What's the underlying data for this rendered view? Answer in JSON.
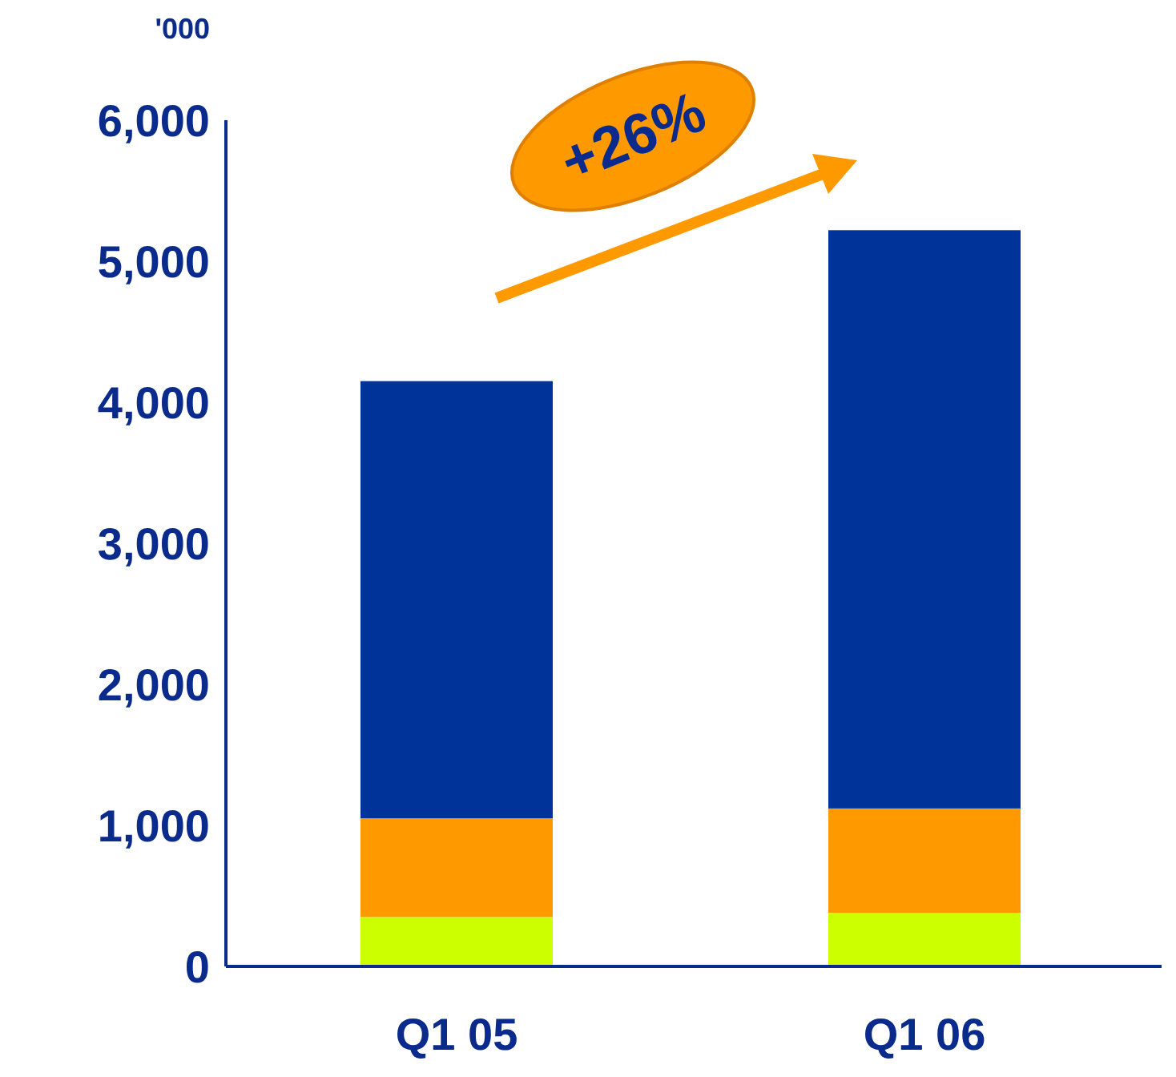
{
  "chart_data": {
    "type": "bar",
    "stacked": true,
    "categories": [
      "Q1 05",
      "Q1 06"
    ],
    "series": [
      {
        "color": "#ccff00",
        "values": [
          350,
          380
        ]
      },
      {
        "color": "#ff9900",
        "values": [
          700,
          740
        ]
      },
      {
        "color": "#003399",
        "values": [
          3100,
          4100
        ]
      }
    ],
    "ylabel": "'000",
    "ylim": [
      0,
      6000
    ],
    "yticks": [
      {
        "value": 0,
        "label": "0"
      },
      {
        "value": 1000,
        "label": "1,000"
      },
      {
        "value": 2000,
        "label": "2,000"
      },
      {
        "value": 3000,
        "label": "3,000"
      },
      {
        "value": 4000,
        "label": "4,000"
      },
      {
        "value": 5000,
        "label": "5,000"
      },
      {
        "value": 6000,
        "label": "6,000"
      }
    ],
    "annotations": [
      "+26%"
    ]
  }
}
